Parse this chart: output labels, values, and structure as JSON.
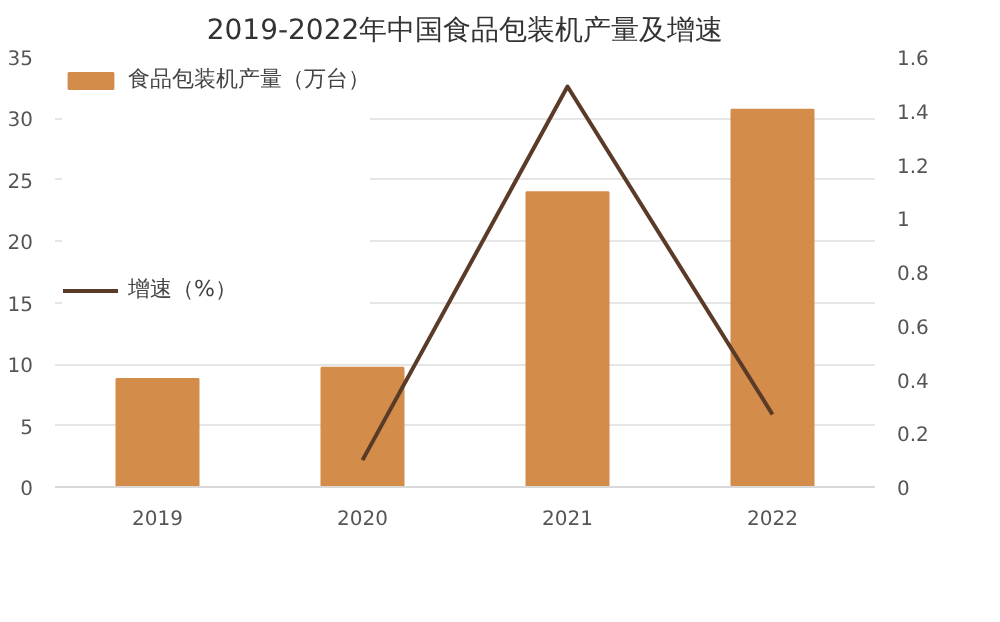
{
  "chart_data": {
    "type": "bar",
    "title": "2019-2022年中国食品包装机产量及增速",
    "categories": [
      "2019",
      "2020",
      "2021",
      "2022"
    ],
    "series": [
      {
        "name": "食品包装机产量（万台）",
        "type": "bar",
        "color": "#d38c4a",
        "values": [
          8.8,
          9.7,
          24.0,
          30.7
        ]
      },
      {
        "name": "增速（%）",
        "type": "line",
        "axis": "y2",
        "color": "#5a3b28",
        "values": [
          null,
          0.1,
          1.49,
          0.27
        ]
      }
    ],
    "ylim": [
      0,
      35
    ],
    "yticks": [
      0,
      5,
      10,
      15,
      20,
      25,
      30,
      35
    ],
    "y2lim": [
      0,
      1.6
    ],
    "y2ticks": [
      0,
      {
        "value": 0.2,
        "label": "0.2"
      },
      {
        "value": 0.4,
        "label": "0.4"
      },
      {
        "value": 0.6,
        "label": "0.6"
      },
      {
        "value": 0.8,
        "label": "0.8"
      },
      1,
      {
        "value": 1.2,
        "label": "1.2"
      },
      {
        "value": 1.4,
        "label": "1.4"
      },
      {
        "value": 1.6,
        "label": "1.6"
      }
    ],
    "grid": "y",
    "legend": "top left",
    "marker": "none",
    "line_style": "solid"
  }
}
